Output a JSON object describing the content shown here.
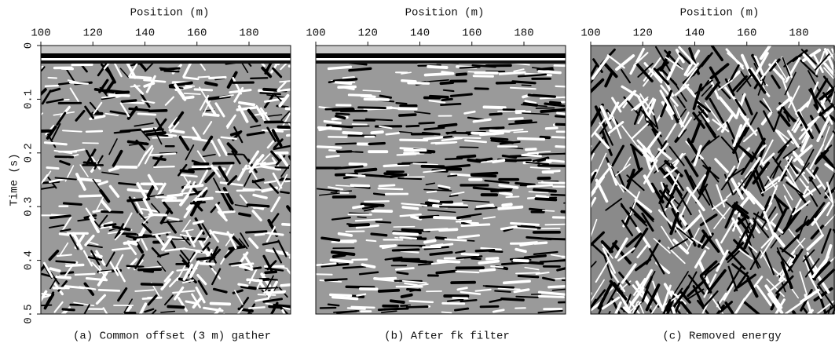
{
  "figure": {
    "y_label": "Time (s)",
    "ylim": [
      0,
      0.5
    ],
    "yticks": [
      0,
      0.1,
      0.2,
      0.3,
      0.4,
      0.5
    ],
    "panels": [
      {
        "x_label": "Position (m)",
        "xlim": [
          100,
          196
        ],
        "xticks": [
          100,
          120,
          140,
          160,
          180
        ],
        "caption": "(a) Common offset (3 m) gather"
      },
      {
        "x_label": "Position (m)",
        "xlim": [
          100,
          196
        ],
        "xticks": [
          100,
          120,
          140,
          160,
          180
        ],
        "caption": "(b) After fk filter"
      },
      {
        "x_label": "Position (m)",
        "xlim": [
          100,
          196
        ],
        "xticks": [
          100,
          120,
          140,
          160,
          180
        ],
        "caption": "(c) Removed energy"
      }
    ]
  }
}
